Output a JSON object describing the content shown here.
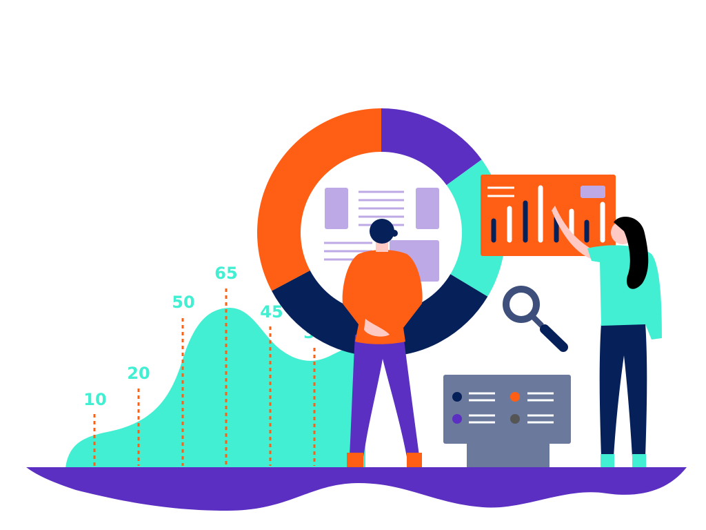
{
  "illustration": {
    "value_labels": [
      "10",
      "20",
      "50",
      "65",
      "45",
      "30"
    ],
    "colors": {
      "teal": "#43efd2",
      "orange": "#ff5f14",
      "purple": "#5b2fc2",
      "navy": "#06205a",
      "lavender": "#bca9e6",
      "slate": "#6b7a9c"
    },
    "icons": [
      "magnifier-icon",
      "donut-chart-icon",
      "bar-chart-board-icon",
      "legend-panel-icon"
    ]
  }
}
